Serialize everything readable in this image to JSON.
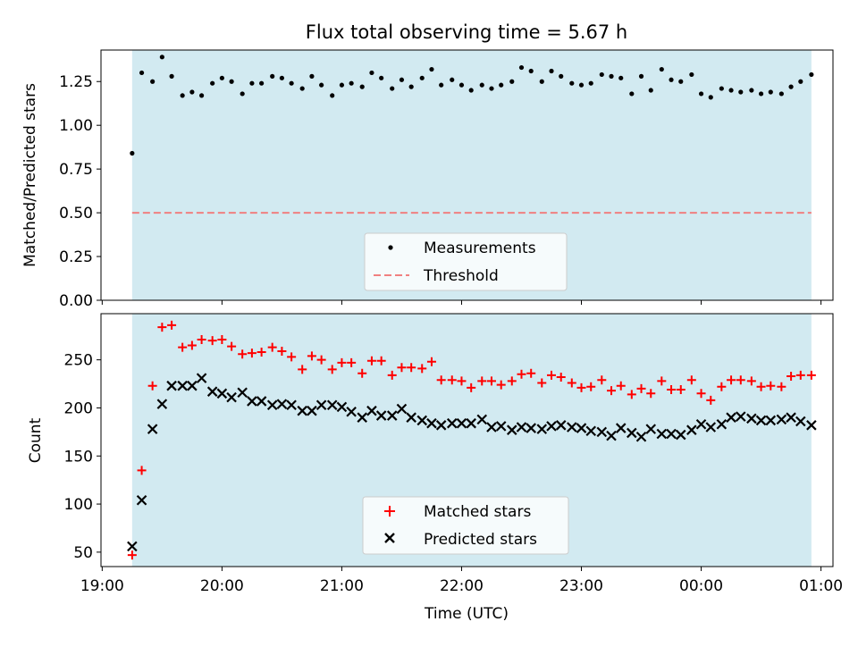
{
  "chart_data": [
    {
      "type": "scatter",
      "title": "Flux total observing time = 5.67 h",
      "xlabel": "",
      "ylabel": "Matched/Predicted stars",
      "x_axis": "time (UTC, hours after 19:00)",
      "xlim": [
        18.99,
        25.1
      ],
      "ylim": [
        0,
        1.43
      ],
      "yticks": [
        0.0,
        0.25,
        0.5,
        0.75,
        1.0,
        1.25
      ],
      "ytick_labels": [
        "0.00",
        "0.25",
        "0.50",
        "0.75",
        "1.00",
        "1.25"
      ],
      "shaded_span": [
        19.25,
        24.92
      ],
      "shade_color": "#add8e6",
      "threshold": 0.5,
      "threshold_color": "#f08080",
      "legend": {
        "location": "lower center",
        "entries": [
          "Measurements",
          "Threshold"
        ]
      },
      "series": [
        {
          "name": "Measurements",
          "color": "#000000",
          "x": [
            19.25,
            19.33,
            19.42,
            19.5,
            19.58,
            19.67,
            19.75,
            19.83,
            19.92,
            20.0,
            20.08,
            20.17,
            20.25,
            20.33,
            20.42,
            20.5,
            20.58,
            20.67,
            20.75,
            20.83,
            20.92,
            21.0,
            21.08,
            21.17,
            21.25,
            21.33,
            21.42,
            21.5,
            21.58,
            21.67,
            21.75,
            21.83,
            21.92,
            22.0,
            22.08,
            22.17,
            22.25,
            22.33,
            22.42,
            22.5,
            22.58,
            22.67,
            22.75,
            22.83,
            22.92,
            23.0,
            23.08,
            23.17,
            23.25,
            23.33,
            23.42,
            23.5,
            23.58,
            23.67,
            23.75,
            23.83,
            23.92,
            24.0,
            24.08,
            24.17,
            24.25,
            24.33,
            24.42,
            24.5,
            24.58,
            24.67,
            24.75,
            24.83,
            24.92
          ],
          "y": [
            0.84,
            1.3,
            1.25,
            1.39,
            1.28,
            1.17,
            1.19,
            1.17,
            1.24,
            1.27,
            1.25,
            1.18,
            1.24,
            1.24,
            1.28,
            1.27,
            1.24,
            1.21,
            1.28,
            1.23,
            1.17,
            1.23,
            1.24,
            1.22,
            1.3,
            1.27,
            1.21,
            1.26,
            1.22,
            1.27,
            1.32,
            1.23,
            1.26,
            1.23,
            1.2,
            1.23,
            1.21,
            1.23,
            1.25,
            1.33,
            1.31,
            1.25,
            1.31,
            1.28,
            1.24,
            1.23,
            1.24,
            1.29,
            1.28,
            1.27,
            1.18,
            1.28,
            1.2,
            1.32,
            1.26,
            1.25,
            1.29,
            1.18,
            1.16,
            1.21,
            1.2,
            1.19,
            1.2,
            1.18,
            1.19,
            1.18,
            1.22,
            1.25,
            1.29
          ]
        }
      ]
    },
    {
      "type": "scatter",
      "title": "",
      "xlabel": "Time (UTC)",
      "ylabel": "Count",
      "x_axis": "time (UTC, hours after 19:00)",
      "xlim": [
        18.99,
        25.1
      ],
      "ylim": [
        35,
        298
      ],
      "yticks": [
        50,
        100,
        150,
        200,
        250
      ],
      "ytick_labels": [
        "50",
        "100",
        "150",
        "200",
        "250"
      ],
      "xticks": [
        19,
        20,
        21,
        22,
        23,
        24,
        25
      ],
      "xtick_labels": [
        "19:00",
        "20:00",
        "21:00",
        "22:00",
        "23:00",
        "00:00",
        "01:00"
      ],
      "shaded_span": [
        19.25,
        24.92
      ],
      "shade_color": "#add8e6",
      "legend": {
        "location": "lower center",
        "entries": [
          "Matched stars",
          "Predicted stars"
        ]
      },
      "series": [
        {
          "name": "Matched stars",
          "marker": "+",
          "color": "#ff0000",
          "x": [
            19.25,
            19.33,
            19.42,
            19.5,
            19.58,
            19.67,
            19.75,
            19.83,
            19.92,
            20.0,
            20.08,
            20.17,
            20.25,
            20.33,
            20.42,
            20.5,
            20.58,
            20.67,
            20.75,
            20.83,
            20.92,
            21.0,
            21.08,
            21.17,
            21.25,
            21.33,
            21.42,
            21.5,
            21.58,
            21.67,
            21.75,
            21.83,
            21.92,
            22.0,
            22.08,
            22.17,
            22.25,
            22.33,
            22.42,
            22.5,
            22.58,
            22.67,
            22.75,
            22.83,
            22.92,
            23.0,
            23.08,
            23.17,
            23.25,
            23.33,
            23.42,
            23.5,
            23.58,
            23.67,
            23.75,
            23.83,
            23.92,
            24.0,
            24.08,
            24.17,
            24.25,
            24.33,
            24.42,
            24.5,
            24.58,
            24.67,
            24.75,
            24.83,
            24.92
          ],
          "y": [
            47,
            135,
            223,
            284,
            286,
            263,
            265,
            271,
            270,
            271,
            264,
            256,
            257,
            258,
            263,
            259,
            253,
            240,
            254,
            250,
            240,
            247,
            247,
            236,
            249,
            249,
            234,
            242,
            242,
            241,
            248,
            229,
            229,
            228,
            221,
            228,
            228,
            224,
            228,
            235,
            236,
            226,
            234,
            232,
            226,
            221,
            222,
            229,
            218,
            223,
            214,
            220,
            215,
            228,
            219,
            219,
            229,
            215,
            208,
            222,
            229,
            229,
            228,
            222,
            223,
            222,
            233,
            234,
            234
          ]
        },
        {
          "name": "Predicted stars",
          "marker": "x",
          "color": "#000000",
          "x": [
            19.25,
            19.33,
            19.42,
            19.5,
            19.58,
            19.67,
            19.75,
            19.83,
            19.92,
            20.0,
            20.08,
            20.17,
            20.25,
            20.33,
            20.42,
            20.5,
            20.58,
            20.67,
            20.75,
            20.83,
            20.92,
            21.0,
            21.08,
            21.17,
            21.25,
            21.33,
            21.42,
            21.5,
            21.58,
            21.67,
            21.75,
            21.83,
            21.92,
            22.0,
            22.08,
            22.17,
            22.25,
            22.33,
            22.42,
            22.5,
            22.58,
            22.67,
            22.75,
            22.83,
            22.92,
            23.0,
            23.08,
            23.17,
            23.25,
            23.33,
            23.42,
            23.5,
            23.58,
            23.67,
            23.75,
            23.83,
            23.92,
            24.0,
            24.08,
            24.17,
            24.25,
            24.33,
            24.42,
            24.5,
            24.58,
            24.67,
            24.75,
            24.83,
            24.92
          ],
          "y": [
            56,
            104,
            178,
            204,
            223,
            223,
            223,
            231,
            217,
            215,
            211,
            216,
            207,
            207,
            203,
            204,
            203,
            197,
            197,
            203,
            203,
            201,
            196,
            190,
            197,
            192,
            192,
            199,
            190,
            187,
            184,
            182,
            184,
            184,
            184,
            188,
            180,
            181,
            177,
            180,
            179,
            178,
            181,
            182,
            180,
            179,
            176,
            175,
            171,
            179,
            174,
            170,
            178,
            173,
            173,
            172,
            177,
            183,
            180,
            183,
            190,
            191,
            189,
            187,
            187,
            188,
            190,
            186,
            182
          ]
        }
      ]
    }
  ]
}
